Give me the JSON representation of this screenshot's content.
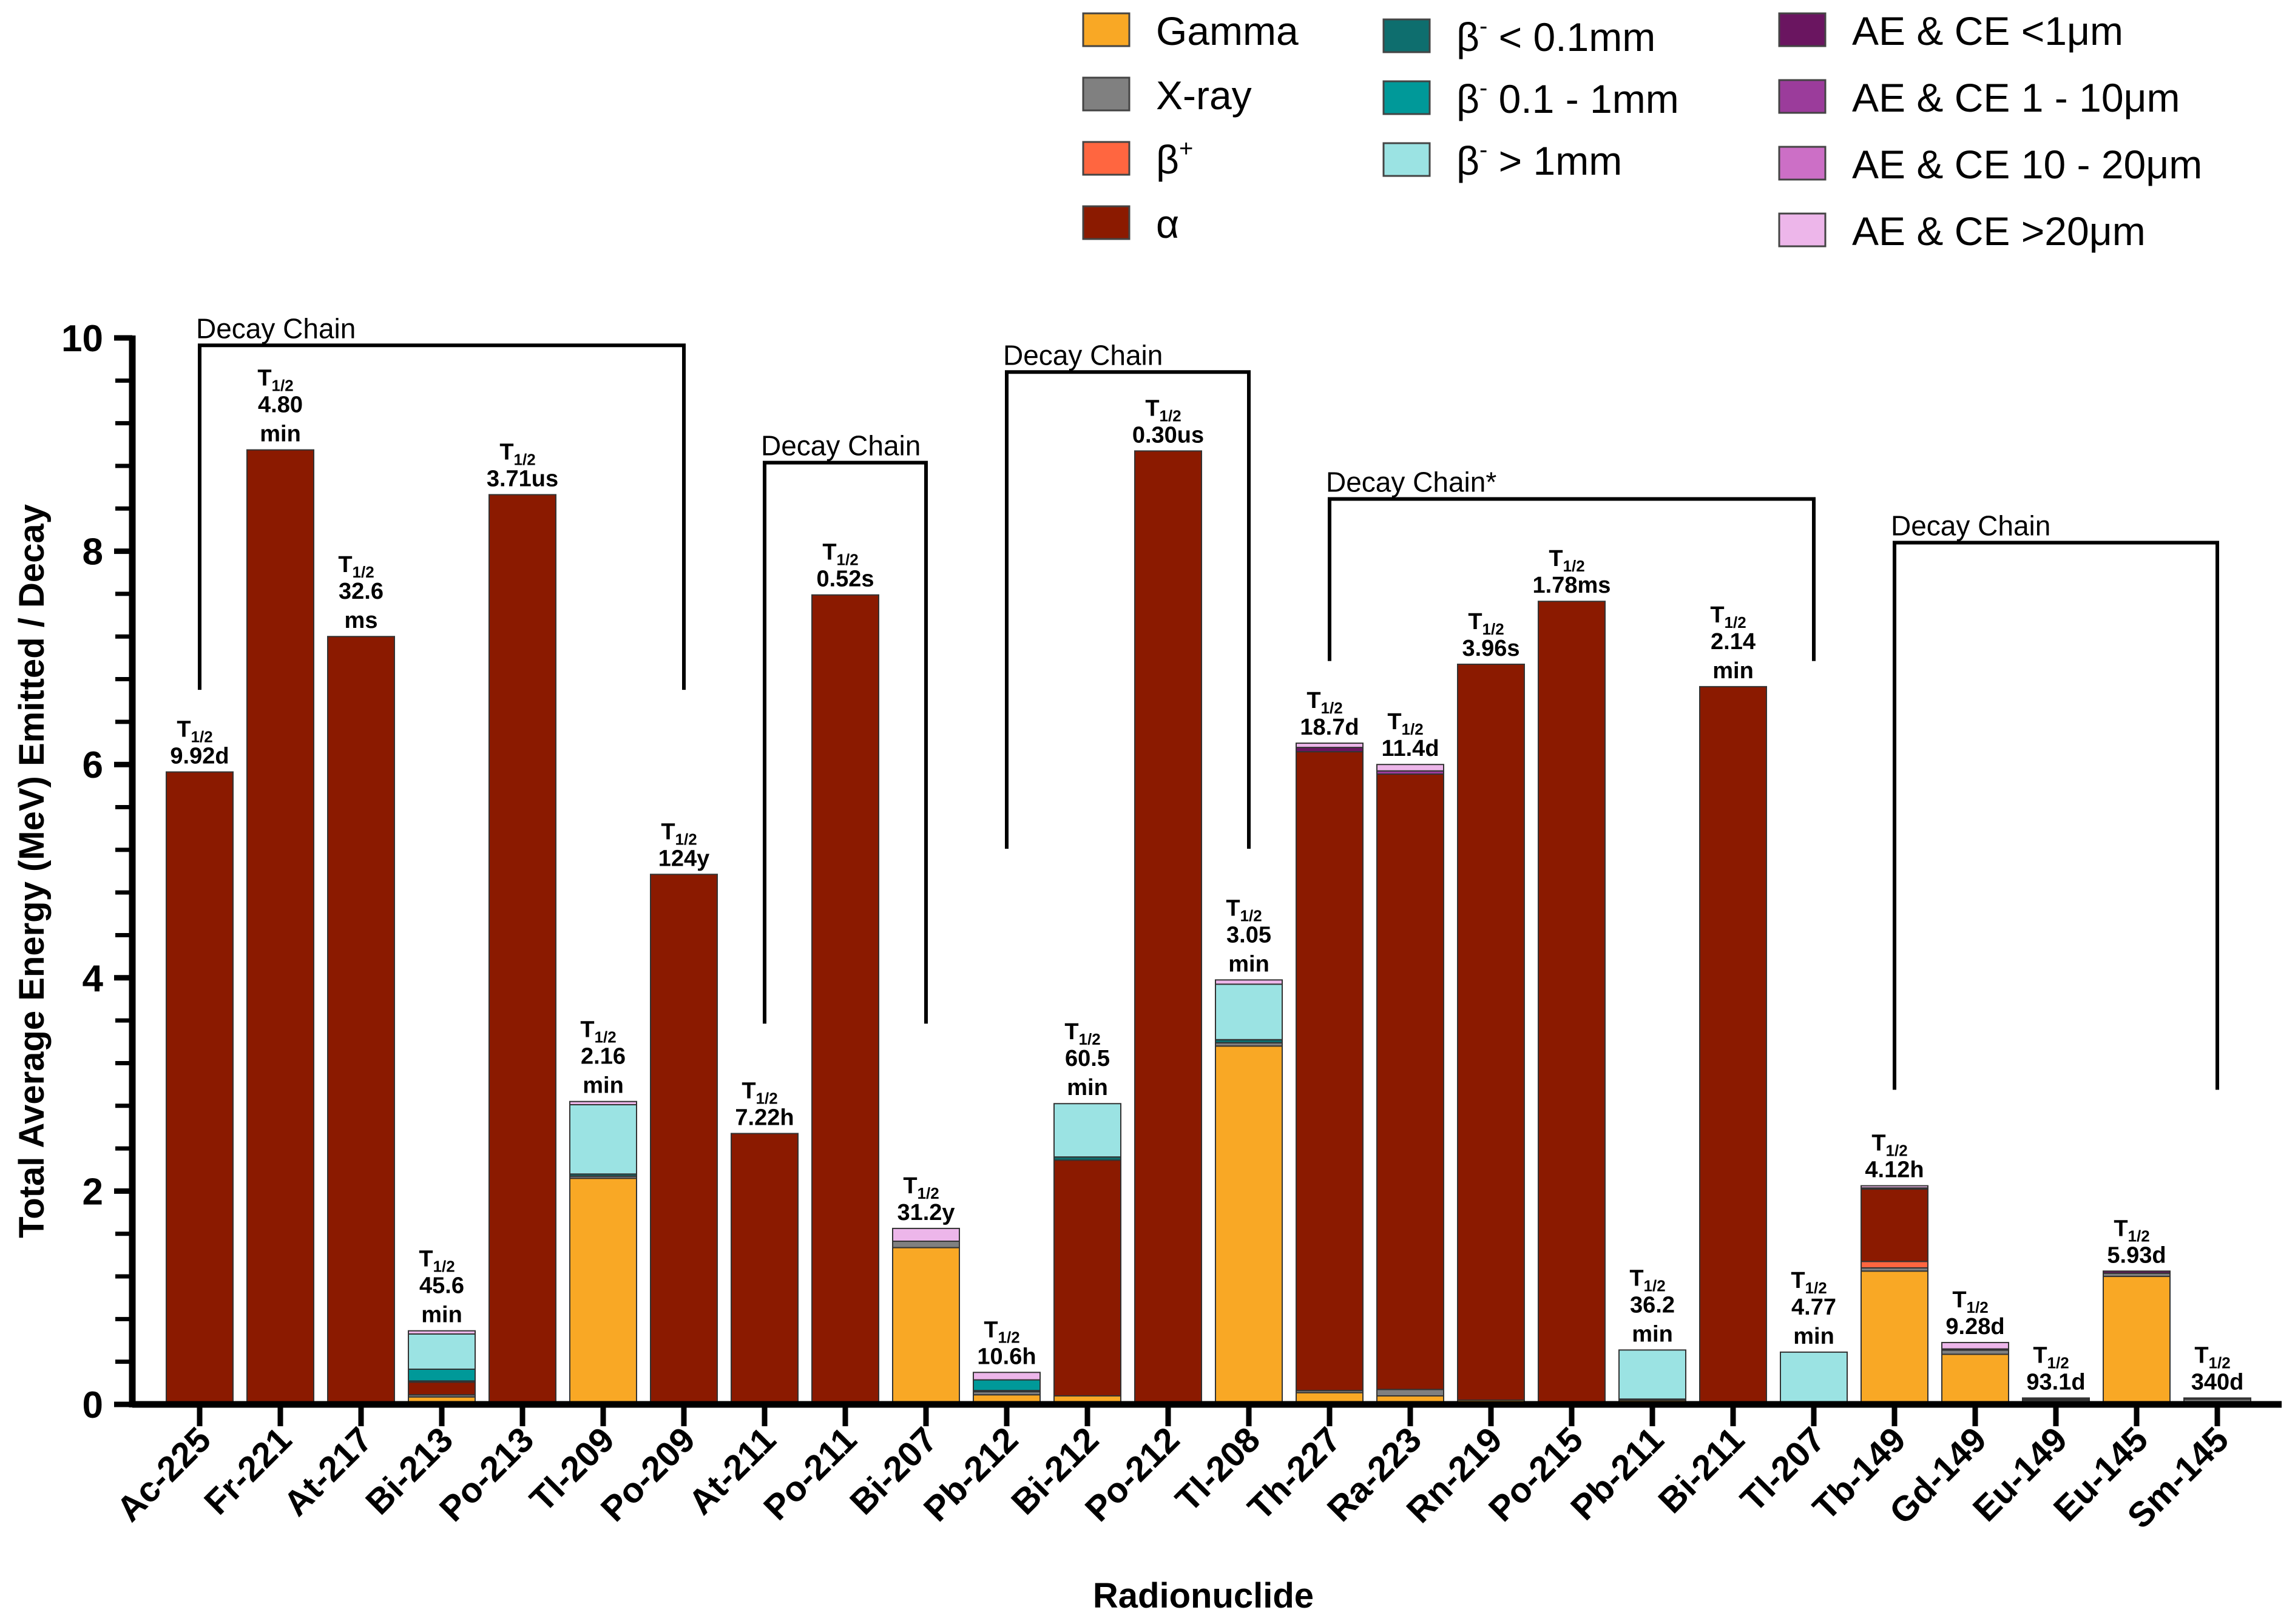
{
  "chart_data": {
    "type": "bar",
    "stacked": true,
    "title": "",
    "xlabel": "Radionuclide",
    "ylabel": "Total Average Energy (MeV) Emitted / Decay",
    "ylim": [
      0,
      10
    ],
    "yticks": [
      "0",
      "2",
      "4",
      "6",
      "8",
      "10"
    ],
    "legend_position": "top-right",
    "half_life_prefix": "T",
    "half_life_subscript": "1/2",
    "series": [
      {
        "key": "gamma",
        "name": "Gamma",
        "color": "#F9A825"
      },
      {
        "key": "xray",
        "name": "X-ray",
        "color": "#808080"
      },
      {
        "key": "bplus",
        "name": "β+",
        "base": "β",
        "sup": "+",
        "color": "#FF6640"
      },
      {
        "key": "alpha",
        "name": "α",
        "color": "#8B1A00"
      },
      {
        "key": "bm01",
        "name": "β- < 0.1mm",
        "base": "β",
        "sup": "-",
        "rest": " < 0.1mm",
        "color": "#0E6E6E"
      },
      {
        "key": "bm1",
        "name": "β- 0.1 - 1mm",
        "base": "β",
        "sup": "-",
        "rest": " 0.1 - 1mm",
        "color": "#009999"
      },
      {
        "key": "bmg1",
        "name": "β- > 1mm",
        "base": "β",
        "sup": "-",
        "rest": " > 1mm",
        "color": "#9BE3E3"
      },
      {
        "key": "ae1",
        "name": "AE & CE <1μm",
        "color": "#6A1560"
      },
      {
        "key": "ae10",
        "name": "AE & CE 1 - 10μm",
        "color": "#9B3C9B"
      },
      {
        "key": "ae20",
        "name": "AE & CE 10 - 20μm",
        "color": "#CC6FC6"
      },
      {
        "key": "aeg20",
        "name": "AE & CE >20μm",
        "color": "#EDB6EA"
      }
    ],
    "categories": [
      {
        "name": "Ac-225",
        "half_life": [
          "9.92d"
        ],
        "values": {
          "alpha": 5.92,
          "xray": 0.01
        }
      },
      {
        "name": "Fr-221",
        "half_life": [
          "4.80",
          "min"
        ],
        "values": {
          "alpha": 8.95
        }
      },
      {
        "name": "At-217",
        "half_life": [
          "32.6",
          "ms"
        ],
        "values": {
          "alpha": 7.2
        }
      },
      {
        "name": "Bi-213",
        "half_life": [
          "45.6",
          "min"
        ],
        "values": {
          "gamma": 0.07,
          "xray": 0.02,
          "alpha": 0.12,
          "bmg1": 0.33,
          "bm1": 0.11,
          "bm01": 0.01,
          "aeg20": 0.03
        }
      },
      {
        "name": "Po-213",
        "half_life": [
          "3.71us"
        ],
        "values": {
          "alpha": 8.53
        }
      },
      {
        "name": "Tl-209",
        "half_life": [
          "2.16",
          "min"
        ],
        "values": {
          "gamma": 2.12,
          "xray": 0.02,
          "bmg1": 0.65,
          "bm01": 0.02,
          "aeg20": 0.03
        }
      },
      {
        "name": "Po-209",
        "half_life": [
          "124y"
        ],
        "values": {
          "alpha": 4.97
        }
      },
      {
        "name": "At-211",
        "half_life": [
          "7.22h"
        ],
        "values": {
          "alpha": 2.54
        }
      },
      {
        "name": "Po-211",
        "half_life": [
          "0.52s"
        ],
        "values": {
          "alpha": 7.59
        }
      },
      {
        "name": "Bi-207",
        "half_life": [
          "31.2y"
        ],
        "values": {
          "gamma": 1.47,
          "xray": 0.06,
          "aeg20": 0.12
        }
      },
      {
        "name": "Pb-212",
        "half_life": [
          "10.6h"
        ],
        "values": {
          "gamma": 0.09,
          "xray": 0.03,
          "bm01": 0.01,
          "bm1": 0.1,
          "aeg20": 0.07
        }
      },
      {
        "name": "Bi-212",
        "half_life": [
          "60.5",
          "min"
        ],
        "values": {
          "gamma": 0.08,
          "alpha": 2.21,
          "bmg1": 0.5,
          "bm01": 0.03
        }
      },
      {
        "name": "Po-212",
        "half_life": [
          "0.30us"
        ],
        "values": {
          "alpha": 8.94
        }
      },
      {
        "name": "Tl-208",
        "half_life": [
          "3.05",
          "min"
        ],
        "values": {
          "gamma": 3.36,
          "xray": 0.03,
          "bmg1": 0.52,
          "bm01": 0.03,
          "aeg20": 0.04
        }
      },
      {
        "name": "Th-227",
        "half_life": [
          "18.7d"
        ],
        "values": {
          "gamma": 0.11,
          "xray": 0.02,
          "alpha": 5.99,
          "ae1": 0.04,
          "aeg20": 0.04
        }
      },
      {
        "name": "Ra-223",
        "half_life": [
          "11.4d"
        ],
        "values": {
          "gamma": 0.08,
          "xray": 0.06,
          "alpha": 5.77,
          "ae10": 0.03,
          "aeg20": 0.06
        }
      },
      {
        "name": "Rn-219",
        "half_life": [
          "3.96s"
        ],
        "values": {
          "gamma": 0.04,
          "alpha": 6.9
        }
      },
      {
        "name": "Po-215",
        "half_life": [
          "1.78ms"
        ],
        "values": {
          "alpha": 7.53
        }
      },
      {
        "name": "Pb-211",
        "half_life": [
          "36.2",
          "min"
        ],
        "values": {
          "gamma": 0.04,
          "bmg1": 0.46,
          "bm01": 0.01
        }
      },
      {
        "name": "Bi-211",
        "half_life": [
          "2.14",
          "min"
        ],
        "values": {
          "alpha": 6.73
        }
      },
      {
        "name": "Tl-207",
        "half_life": [
          "4.77",
          "min"
        ],
        "values": {
          "bmg1": 0.49
        }
      },
      {
        "name": "Tb-149",
        "half_life": [
          "4.12h"
        ],
        "values": {
          "gamma": 1.25,
          "xray": 0.03,
          "alpha": 0.68,
          "bplus": 0.06,
          "ae10": 0.01,
          "aeg20": 0.02
        }
      },
      {
        "name": "Gd-149",
        "half_life": [
          "9.28d"
        ],
        "values": {
          "gamma": 0.47,
          "xray": 0.04,
          "ae1": 0.01,
          "aeg20": 0.06
        }
      },
      {
        "name": "Eu-149",
        "half_life": [
          "93.1d"
        ],
        "values": {
          "gamma": 0.01,
          "xray": 0.03,
          "ae1": 0.01,
          "ae10": 0.01
        }
      },
      {
        "name": "Eu-145",
        "half_life": [
          "5.93d"
        ],
        "values": {
          "gamma": 1.2,
          "xray": 0.03,
          "ae1": 0.02
        }
      },
      {
        "name": "Sm-145",
        "half_life": [
          "340d"
        ],
        "values": {
          "xray": 0.05,
          "ae1": 0.01
        }
      }
    ],
    "annotations": [
      {
        "label": "Decay Chain",
        "from": "Ac-225",
        "to": "Po-209",
        "y_top": 9.93,
        "y_left_end": 6.7,
        "y_right_end": 6.7
      },
      {
        "label": "Decay Chain",
        "from": "At-211",
        "to": "Bi-207",
        "y_top": 8.83,
        "y_left_end": 3.57,
        "y_right_end": 3.57
      },
      {
        "label": "Decay Chain",
        "from": "Pb-212",
        "to": "Tl-208",
        "y_top": 9.68,
        "y_left_end": 5.21,
        "y_right_end": 5.21
      },
      {
        "label": "Decay Chain*",
        "from": "Th-227",
        "to": "Tl-207",
        "y_top": 8.49,
        "y_left_end": 6.97,
        "y_right_end": 6.97
      },
      {
        "label": "Decay Chain",
        "from": "Tb-149",
        "to": "Sm-145",
        "y_top": 8.08,
        "y_left_end": 2.95,
        "y_right_end": 2.95
      }
    ]
  }
}
